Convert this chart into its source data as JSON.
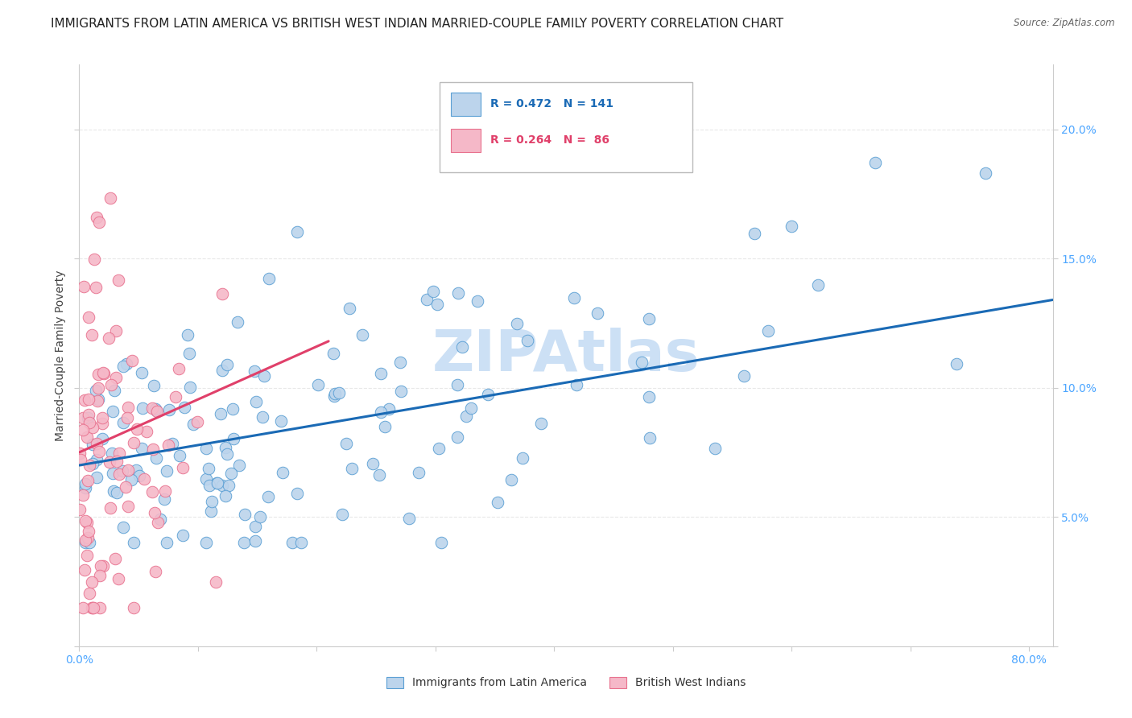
{
  "title": "IMMIGRANTS FROM LATIN AMERICA VS BRITISH WEST INDIAN MARRIED-COUPLE FAMILY POVERTY CORRELATION CHART",
  "source": "Source: ZipAtlas.com",
  "ylabel": "Married-Couple Family Poverty",
  "watermark": "ZIPAtlas",
  "xlim": [
    0.0,
    0.82
  ],
  "ylim": [
    0.0,
    0.225
  ],
  "yticks": [
    0.0,
    0.05,
    0.1,
    0.15,
    0.2
  ],
  "yticklabels_right": [
    "",
    "5.0%",
    "10.0%",
    "15.0%",
    "20.0%"
  ],
  "blue_R": 0.472,
  "blue_N": 141,
  "pink_R": 0.264,
  "pink_N": 86,
  "blue_color": "#bcd4ec",
  "pink_color": "#f5b8c8",
  "blue_edge_color": "#5a9fd4",
  "pink_edge_color": "#e8718e",
  "blue_line_color": "#1a6ab5",
  "pink_line_color": "#e0406a",
  "legend_label_blue": "Immigrants from Latin America",
  "legend_label_pink": "British West Indians",
  "blue_trend_x": [
    0.0,
    0.82
  ],
  "blue_trend_y": [
    0.07,
    0.134
  ],
  "pink_trend_x": [
    0.0,
    0.21
  ],
  "pink_trend_y": [
    0.075,
    0.118
  ],
  "title_fontsize": 11,
  "axis_label_fontsize": 10,
  "tick_fontsize": 10,
  "legend_fontsize": 10,
  "watermark_fontsize": 52,
  "watermark_color": "#cce0f5",
  "background_color": "#ffffff",
  "grid_color": "#e8e8e8",
  "tick_color": "#4da6ff",
  "ytick_label_color": "#4da6ff",
  "xtick_label_color": "#4da6ff"
}
